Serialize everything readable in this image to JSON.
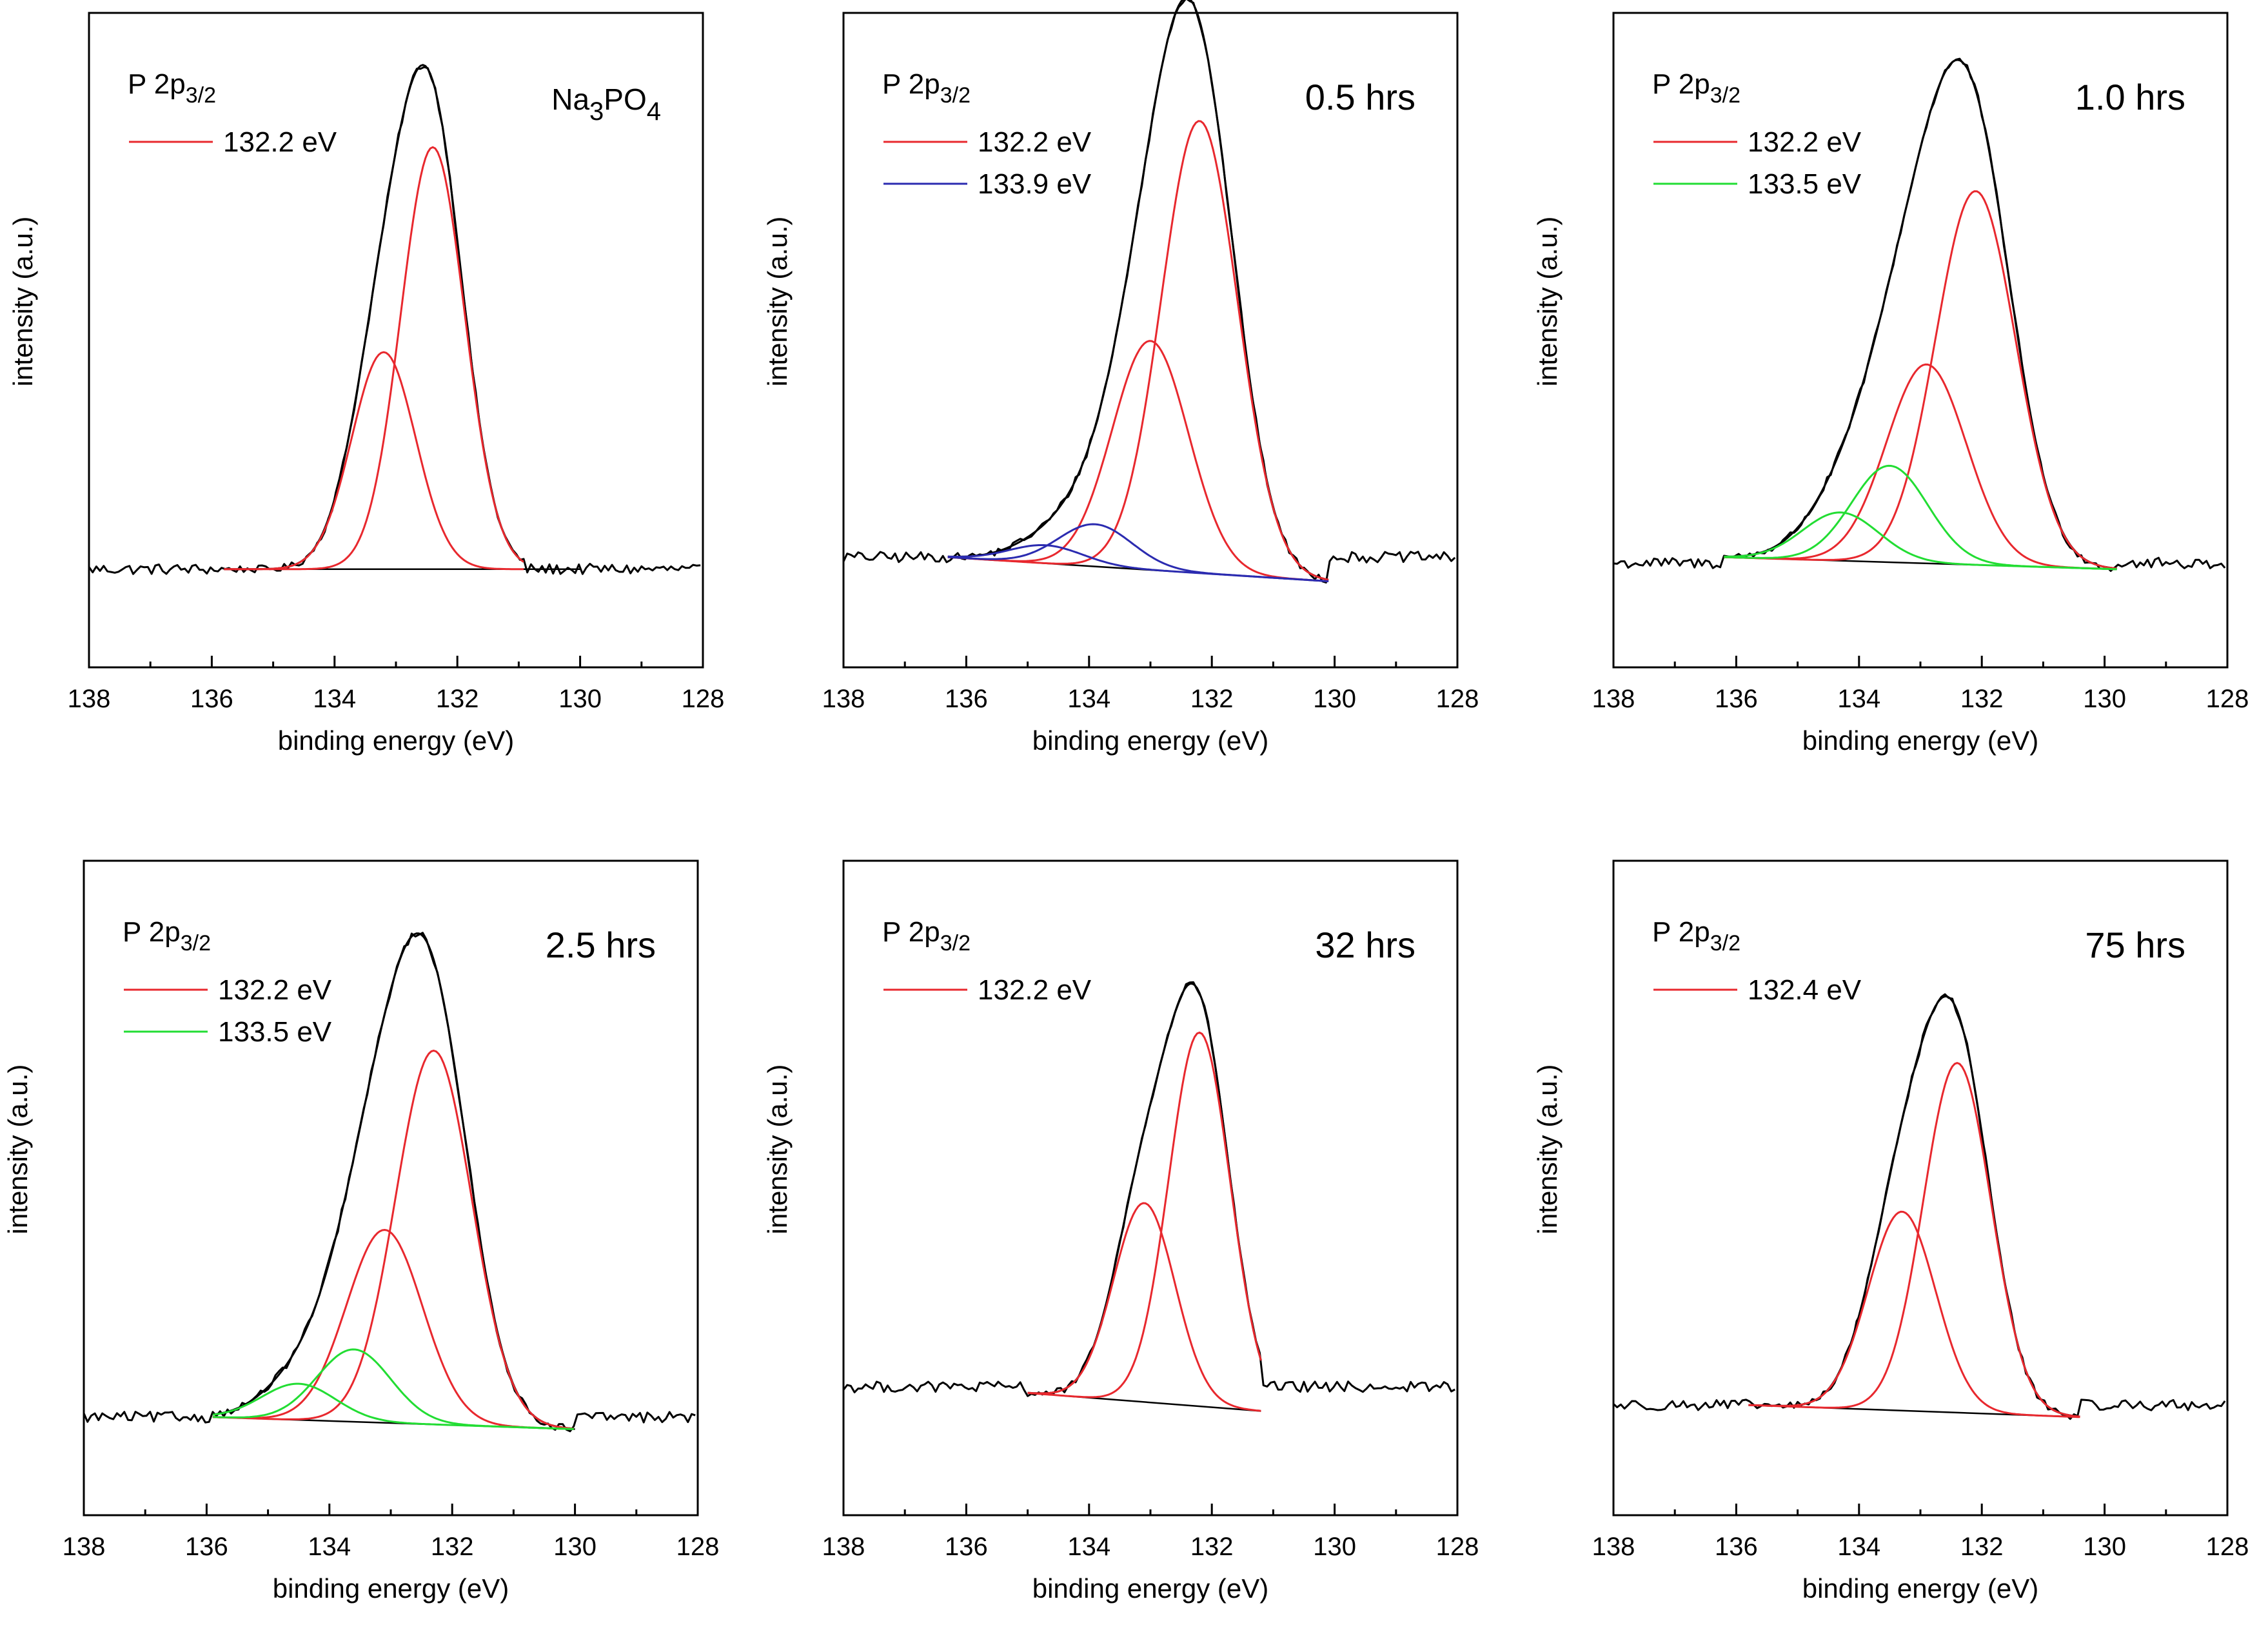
{
  "chart_data": [
    {
      "type": "line",
      "panel_label": "Na₃PO₄",
      "legend_title": "P 2p3/2",
      "xlabel": "binding energy (eV)",
      "ylabel": "intensity (a.u.)",
      "xlim": [
        138,
        128
      ],
      "xticks": [
        138,
        136,
        134,
        132,
        130,
        128
      ],
      "ylim": [
        0,
        1
      ],
      "baseline": [
        [
          135.8,
          0.12
        ],
        [
          130.0,
          0.12
        ]
      ],
      "noise_level": 0.12,
      "components": [
        {
          "name": "132.2 eV",
          "color": "#e8282e",
          "center": 132.4,
          "height": 0.7,
          "sigma": 0.52,
          "legend": true
        },
        {
          "name": "",
          "color": "#e8282e",
          "center": 133.2,
          "height": 0.36,
          "sigma": 0.52,
          "legend": false
        }
      ],
      "envelope_range": [
        135.8,
        130.9
      ]
    },
    {
      "type": "line",
      "panel_label": "0.5 hrs",
      "legend_title": "P 2p3/2",
      "xlabel": "binding energy (eV)",
      "ylabel": "intensity (a.u.)",
      "xlim": [
        138,
        128
      ],
      "xticks": [
        138,
        136,
        134,
        132,
        130,
        128
      ],
      "ylim": [
        0,
        1
      ],
      "baseline": [
        [
          136.3,
          0.14
        ],
        [
          130.1,
          0.1
        ]
      ],
      "noise_level": 0.14,
      "components": [
        {
          "name": "132.2 eV",
          "color": "#e8282e",
          "center": 132.2,
          "height": 0.75,
          "sigma": 0.62,
          "legend": true
        },
        {
          "name": "",
          "color": "#e8282e",
          "center": 133.0,
          "height": 0.38,
          "sigma": 0.62,
          "legend": false
        },
        {
          "name": "133.9 eV",
          "color": "#2b2bb0",
          "center": 133.9,
          "height": 0.07,
          "sigma": 0.6,
          "legend": true
        },
        {
          "name": "",
          "color": "#2b2bb0",
          "center": 134.7,
          "height": 0.03,
          "sigma": 0.6,
          "legend": false
        }
      ],
      "envelope_range": [
        136.3,
        130.1
      ]
    },
    {
      "type": "line",
      "panel_label": "1.0 hrs",
      "legend_title": "P 2p3/2",
      "xlabel": "binding energy (eV)",
      "ylabel": "intensity (a.u.)",
      "xlim": [
        138,
        128
      ],
      "xticks": [
        138,
        136,
        134,
        132,
        130,
        128
      ],
      "ylim": [
        0,
        1
      ],
      "baseline": [
        [
          136.2,
          0.14
        ],
        [
          129.8,
          0.12
        ]
      ],
      "noise_level": 0.13,
      "components": [
        {
          "name": "132.2 eV",
          "color": "#e8282e",
          "center": 132.1,
          "height": 0.62,
          "sigma": 0.65,
          "legend": true
        },
        {
          "name": "",
          "color": "#e8282e",
          "center": 132.9,
          "height": 0.33,
          "sigma": 0.65,
          "legend": false
        },
        {
          "name": "133.5 eV",
          "color": "#22dd33",
          "center": 133.5,
          "height": 0.16,
          "sigma": 0.62,
          "legend": true
        },
        {
          "name": "",
          "color": "#22dd33",
          "center": 134.3,
          "height": 0.08,
          "sigma": 0.62,
          "legend": false
        }
      ],
      "envelope_range": [
        136.2,
        129.8
      ]
    },
    {
      "type": "line",
      "panel_label": "2.5 hrs",
      "legend_title": "P 2p3/2",
      "xlabel": "binding energy (eV)",
      "ylabel": "intensity (a.u.)",
      "xlim": [
        138,
        128
      ],
      "xticks": [
        138,
        136,
        134,
        132,
        130,
        128
      ],
      "ylim": [
        0,
        1
      ],
      "baseline": [
        [
          135.9,
          0.12
        ],
        [
          130.0,
          0.1
        ]
      ],
      "noise_level": 0.12,
      "components": [
        {
          "name": "132.2 eV",
          "color": "#e8282e",
          "center": 132.3,
          "height": 0.62,
          "sigma": 0.62,
          "legend": true
        },
        {
          "name": "",
          "color": "#e8282e",
          "center": 133.1,
          "height": 0.32,
          "sigma": 0.62,
          "legend": false
        },
        {
          "name": "133.5 eV",
          "color": "#22dd33",
          "center": 133.6,
          "height": 0.12,
          "sigma": 0.6,
          "legend": true
        },
        {
          "name": "",
          "color": "#22dd33",
          "center": 134.5,
          "height": 0.06,
          "sigma": 0.6,
          "legend": false
        }
      ],
      "envelope_range": [
        135.9,
        130.0
      ]
    },
    {
      "type": "line",
      "panel_label": "32 hrs",
      "legend_title": "P 2p3/2",
      "xlabel": "binding energy (eV)",
      "ylabel": "intensity (a.u.)",
      "xlim": [
        138,
        128
      ],
      "xticks": [
        138,
        136,
        134,
        132,
        130,
        128
      ],
      "ylim": [
        0,
        1
      ],
      "baseline": [
        [
          135.0,
          0.16
        ],
        [
          131.2,
          0.13
        ]
      ],
      "noise_level": 0.17,
      "components": [
        {
          "name": "132.2 eV",
          "color": "#e8282e",
          "center": 132.2,
          "height": 0.62,
          "sigma": 0.5,
          "legend": true
        },
        {
          "name": "",
          "color": "#e8282e",
          "center": 133.1,
          "height": 0.33,
          "sigma": 0.5,
          "legend": false
        }
      ],
      "envelope_range": [
        135.0,
        131.2
      ]
    },
    {
      "type": "line",
      "panel_label": "75 hrs",
      "legend_title": "P 2p3/2",
      "xlabel": "binding energy (eV)",
      "ylabel": "intensity (a.u.)",
      "xlim": [
        138,
        128
      ],
      "xticks": [
        138,
        136,
        134,
        132,
        130,
        128
      ],
      "ylim": [
        0,
        1
      ],
      "baseline": [
        [
          135.8,
          0.14
        ],
        [
          130.4,
          0.12
        ]
      ],
      "noise_level": 0.14,
      "components": [
        {
          "name": "132.4 eV",
          "color": "#e8282e",
          "center": 132.4,
          "height": 0.58,
          "sigma": 0.55,
          "legend": true
        },
        {
          "name": "",
          "color": "#e8282e",
          "center": 133.3,
          "height": 0.33,
          "sigma": 0.55,
          "legend": false
        }
      ],
      "envelope_range": [
        135.8,
        130.4
      ]
    }
  ]
}
